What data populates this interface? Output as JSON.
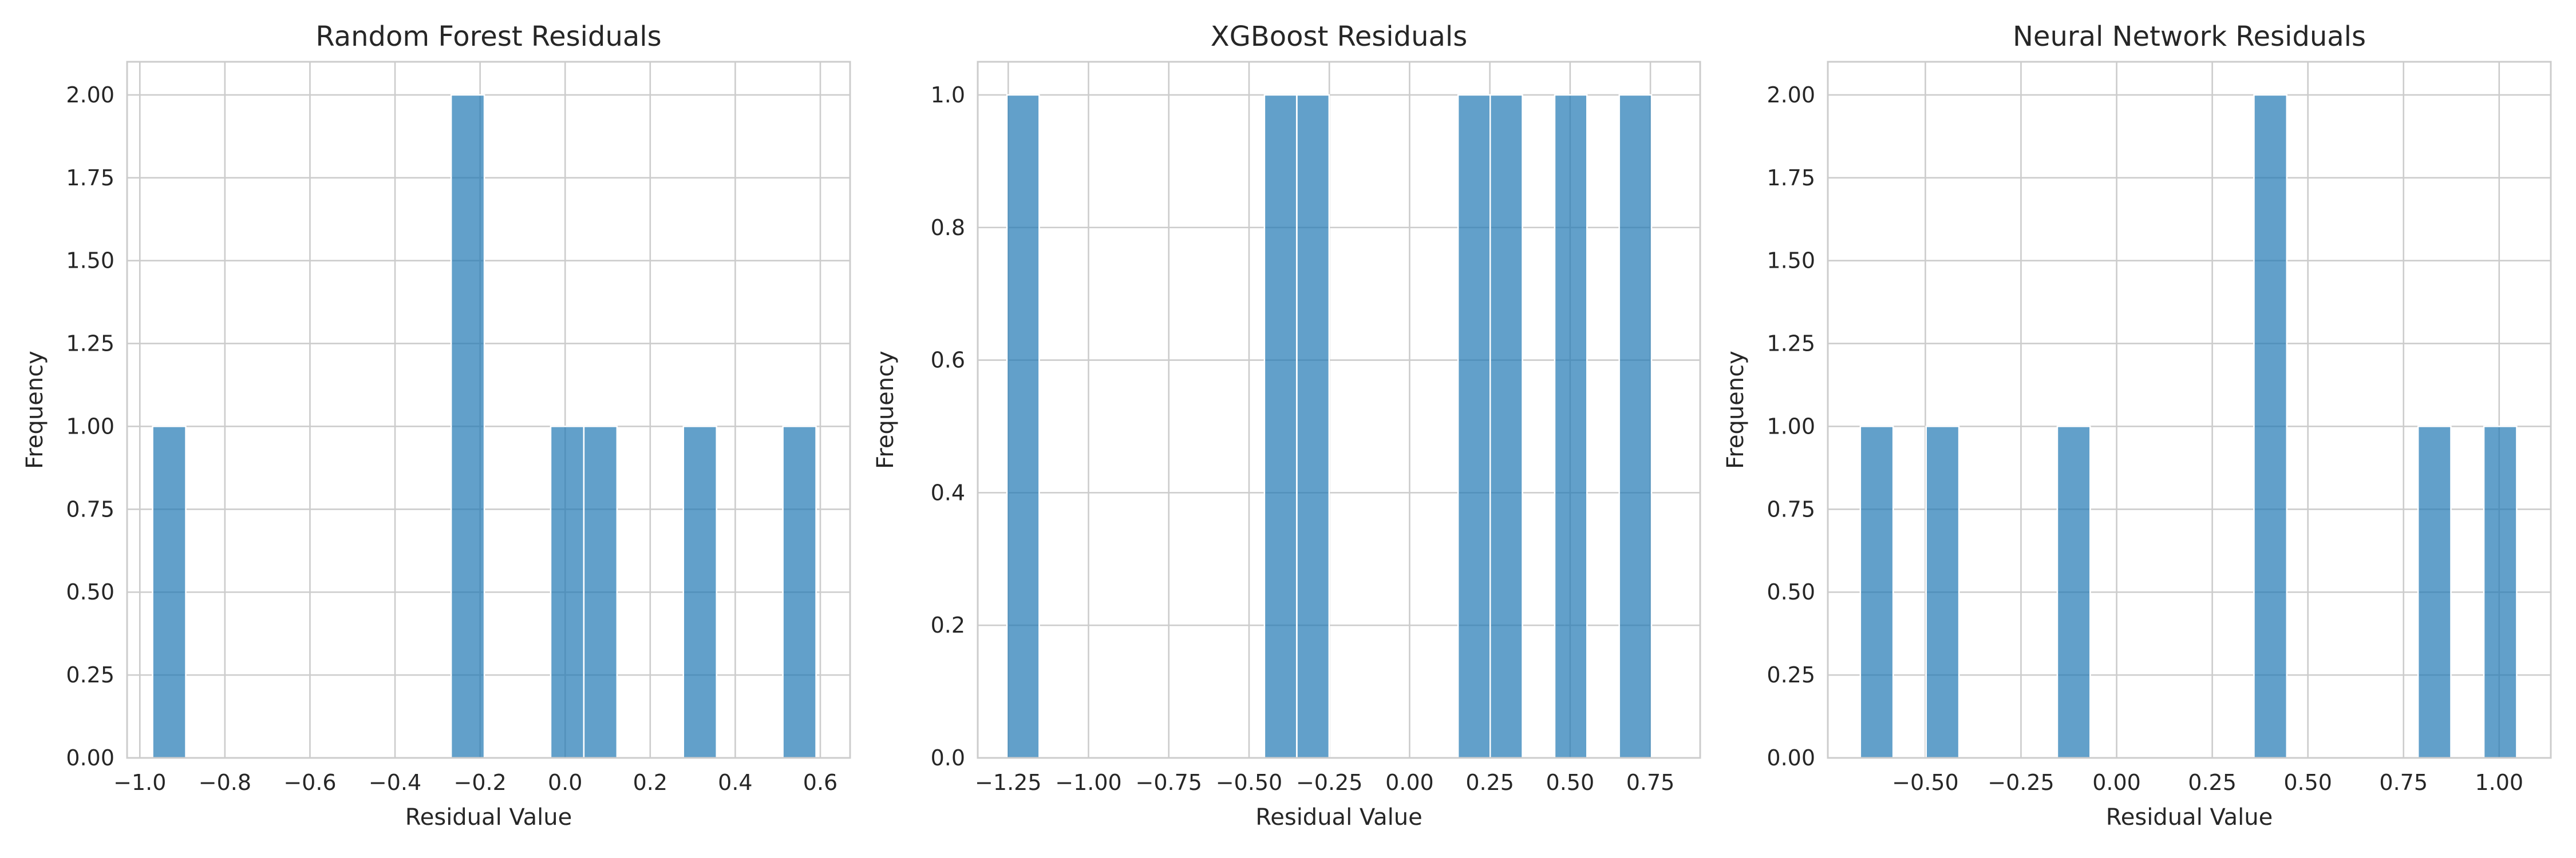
{
  "chart_data": [
    {
      "type": "bar",
      "title": "Random Forest Residuals",
      "xlabel": "Residual Value",
      "ylabel": "Frequency",
      "xlim": [
        -1.03,
        0.67
      ],
      "ylim": [
        0,
        2.1
      ],
      "xticks": [
        -1.0,
        -0.8,
        -0.6,
        -0.4,
        -0.2,
        0.0,
        0.2,
        0.4,
        0.6
      ],
      "xtick_labels": [
        "−1.0",
        "−0.8",
        "−0.6",
        "−0.4",
        "−0.2",
        "0.0",
        "0.2",
        "0.4",
        "0.6"
      ],
      "yticks": [
        0,
        0.25,
        0.5,
        0.75,
        1.0,
        1.25,
        1.5,
        1.75,
        2.0
      ],
      "ytick_labels": [
        "0.00",
        "0.25",
        "0.50",
        "0.75",
        "1.00",
        "1.25",
        "1.50",
        "1.75",
        "2.00"
      ],
      "bin_width": 0.078,
      "bins": [
        {
          "x0": -0.97,
          "count": 1
        },
        {
          "x0": -0.268,
          "count": 2
        },
        {
          "x0": -0.034,
          "count": 1
        },
        {
          "x0": 0.044,
          "count": 1
        },
        {
          "x0": 0.278,
          "count": 1
        },
        {
          "x0": 0.512,
          "count": 1
        }
      ],
      "grid": true
    },
    {
      "type": "bar",
      "title": "XGBoost Residuals",
      "xlabel": "Residual Value",
      "ylabel": "Frequency",
      "xlim": [
        -1.345,
        0.905
      ],
      "ylim": [
        0,
        1.05
      ],
      "xticks": [
        -1.25,
        -1.0,
        -0.75,
        -0.5,
        -0.25,
        0.0,
        0.25,
        0.5,
        0.75
      ],
      "xtick_labels": [
        "−1.25",
        "−1.00",
        "−0.75",
        "−0.50",
        "−0.25",
        "0.00",
        "0.25",
        "0.50",
        "0.75"
      ],
      "yticks": [
        0,
        0.2,
        0.4,
        0.6,
        0.8,
        1.0
      ],
      "ytick_labels": [
        "0.0",
        "0.2",
        "0.4",
        "0.6",
        "0.8",
        "1.0"
      ],
      "bin_width": 0.1004,
      "bins": [
        {
          "x0": -1.254,
          "count": 1
        },
        {
          "x0": -0.452,
          "count": 1
        },
        {
          "x0": -0.351,
          "count": 1
        },
        {
          "x0": 0.151,
          "count": 1
        },
        {
          "x0": 0.251,
          "count": 1
        },
        {
          "x0": 0.452,
          "count": 1
        },
        {
          "x0": 0.653,
          "count": 1
        }
      ],
      "grid": true
    },
    {
      "type": "bar",
      "title": "Neural Network Residuals",
      "xlabel": "Residual Value",
      "ylabel": "Frequency",
      "xlim": [
        -0.755,
        1.135
      ],
      "ylim": [
        0,
        2.1
      ],
      "xticks": [
        -0.5,
        -0.25,
        0.0,
        0.25,
        0.5,
        0.75,
        1.0
      ],
      "xtick_labels": [
        "−0.50",
        "−0.25",
        "0.00",
        "0.25",
        "0.50",
        "0.75",
        "1.00"
      ],
      "yticks": [
        0,
        0.25,
        0.5,
        0.75,
        1.0,
        1.25,
        1.5,
        1.75,
        2.0
      ],
      "ytick_labels": [
        "0.00",
        "0.25",
        "0.50",
        "0.75",
        "1.00",
        "1.25",
        "1.50",
        "1.75",
        "2.00"
      ],
      "bin_width": 0.0858,
      "bins": [
        {
          "x0": -0.67,
          "count": 1
        },
        {
          "x0": -0.498,
          "count": 1
        },
        {
          "x0": -0.155,
          "count": 1
        },
        {
          "x0": 0.359,
          "count": 2
        },
        {
          "x0": 0.788,
          "count": 1
        },
        {
          "x0": 0.96,
          "count": 1
        }
      ],
      "grid": true
    }
  ]
}
